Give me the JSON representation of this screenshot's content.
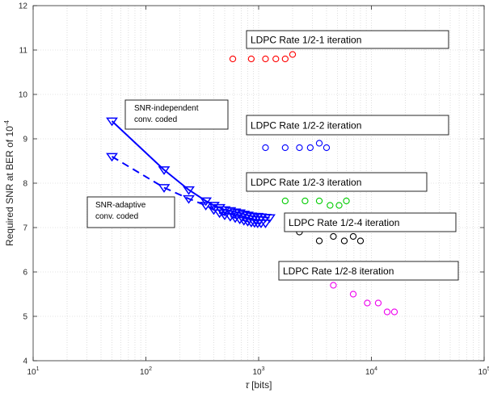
{
  "chart_data": {
    "type": "scatter",
    "title": "",
    "xlabel": "[bits]",
    "xlabel_symbol": "τ",
    "ylabel": "Required SNR at BER of 10",
    "ylabel_exp": "-4",
    "x_scale": "log",
    "xlim": [
      10,
      100000
    ],
    "ylim": [
      4,
      12
    ],
    "grid": "dotted",
    "x_ticks": [
      {
        "value": 10,
        "base": "10",
        "exp": "1"
      },
      {
        "value": 100,
        "base": "10",
        "exp": "2"
      },
      {
        "value": 1000,
        "base": "10",
        "exp": "3"
      },
      {
        "value": 10000,
        "base": "10",
        "exp": "4"
      },
      {
        "value": 100000,
        "base": "10",
        "exp": "5"
      }
    ],
    "y_ticks": [
      "4",
      "5",
      "6",
      "7",
      "8",
      "9",
      "10",
      "11",
      "12"
    ],
    "series": [
      {
        "key": "snr_independent",
        "name": "SNR-independent conv. coded",
        "label_lines": [
          "SNR-independent",
          "conv. coded"
        ],
        "color": "#0000ff",
        "marker": "triangle-down",
        "line": "solid",
        "x": [
          50,
          145,
          240,
          340,
          400,
          450,
          500,
          560,
          620,
          680,
          740,
          800,
          860,
          920,
          980,
          1050,
          1150,
          1250
        ],
        "y": [
          9.4,
          8.3,
          7.85,
          7.6,
          7.5,
          7.45,
          7.4,
          7.38,
          7.35,
          7.33,
          7.3,
          7.28,
          7.26,
          7.25,
          7.25,
          7.24,
          7.23,
          7.22
        ]
      },
      {
        "key": "snr_adaptive",
        "name": "SNR-adaptive conv. coded",
        "label_lines": [
          "SNR-adaptive",
          "conv. coded"
        ],
        "color": "#0000ff",
        "marker": "triangle-down",
        "line": "dashed",
        "x": [
          50,
          145,
          240,
          340,
          400,
          450,
          500,
          560,
          620,
          680,
          740,
          800,
          860,
          920,
          980,
          1050,
          1150
        ],
        "y": [
          8.6,
          7.9,
          7.65,
          7.5,
          7.4,
          7.33,
          7.28,
          7.25,
          7.22,
          7.19,
          7.16,
          7.14,
          7.12,
          7.11,
          7.1,
          7.1,
          7.1
        ]
      },
      {
        "key": "ldpc1",
        "name": "LDPC Rate 1/2-1 iteration",
        "color": "#ff0000",
        "marker": "circle",
        "line": "none",
        "x": [
          590,
          860,
          1150,
          1420,
          1720,
          2000
        ],
        "y": [
          10.8,
          10.8,
          10.8,
          10.8,
          10.8,
          10.9
        ]
      },
      {
        "key": "ldpc2",
        "name": "LDPC Rate 1/2-2 iteration",
        "color": "#0000ff",
        "marker": "circle",
        "line": "none",
        "x": [
          1150,
          1720,
          2300,
          2870,
          3450,
          4000
        ],
        "y": [
          8.8,
          8.8,
          8.8,
          8.8,
          8.9,
          8.8
        ]
      },
      {
        "key": "ldpc3",
        "name": "LDPC Rate 1/2-3 iteration",
        "color": "#00cc00",
        "marker": "circle",
        "line": "none",
        "x": [
          1720,
          2580,
          3450,
          4300,
          5170,
          6000
        ],
        "y": [
          7.6,
          7.6,
          7.6,
          7.5,
          7.5,
          7.6
        ]
      },
      {
        "key": "ldpc4",
        "name": "LDPC Rate 1/2-4 iteration",
        "color": "#000000",
        "marker": "circle",
        "line": "none",
        "x": [
          2300,
          3450,
          4600,
          5750,
          6900,
          8000
        ],
        "y": [
          6.9,
          6.7,
          6.8,
          6.7,
          6.8,
          6.7
        ]
      },
      {
        "key": "ldpc8",
        "name": "LDPC Rate 1/2-8 iteration",
        "color": "#ee00ee",
        "marker": "circle",
        "line": "none",
        "x": [
          4600,
          6900,
          9200,
          11500,
          13800,
          16000
        ],
        "y": [
          5.7,
          5.5,
          5.3,
          5.3,
          5.1,
          5.1
        ]
      }
    ]
  }
}
